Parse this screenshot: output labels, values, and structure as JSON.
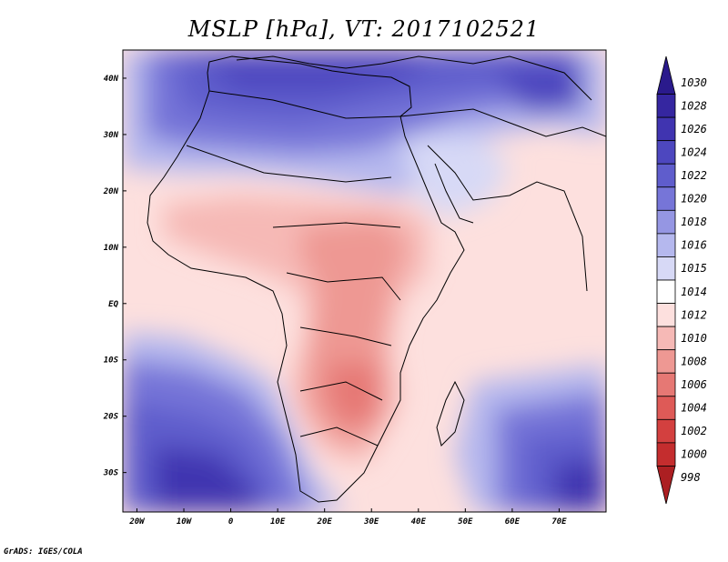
{
  "title": "MSLP [hPa], VT: 2017102521",
  "credit": "GrADS: IGES/COLA",
  "map": {
    "lon_range": [
      -23,
      80
    ],
    "lat_range": [
      -37,
      45
    ],
    "lon_ticks": [
      {
        "lon": -20,
        "label": "20W"
      },
      {
        "lon": -10,
        "label": "10W"
      },
      {
        "lon": 0,
        "label": "0"
      },
      {
        "lon": 10,
        "label": "10E"
      },
      {
        "lon": 20,
        "label": "20E"
      },
      {
        "lon": 30,
        "label": "30E"
      },
      {
        "lon": 40,
        "label": "40E"
      },
      {
        "lon": 50,
        "label": "50E"
      },
      {
        "lon": 60,
        "label": "60E"
      },
      {
        "lon": 70,
        "label": "70E"
      }
    ],
    "lat_ticks": [
      {
        "lat": 40,
        "label": "40N"
      },
      {
        "lat": 30,
        "label": "30N"
      },
      {
        "lat": 20,
        "label": "20N"
      },
      {
        "lat": 10,
        "label": "10N"
      },
      {
        "lat": 0,
        "label": "EQ"
      },
      {
        "lat": -10,
        "label": "10S"
      },
      {
        "lat": -20,
        "label": "20S"
      },
      {
        "lat": -30,
        "label": "30S"
      }
    ]
  },
  "colorbar": {
    "levels": [
      {
        "label": "1030",
        "color": "#2a1a8c"
      },
      {
        "label": "1028",
        "color": "#3526a0"
      },
      {
        "label": "1026",
        "color": "#4034b0"
      },
      {
        "label": "1024",
        "color": "#4d47bf"
      },
      {
        "label": "1022",
        "color": "#5f5dcc"
      },
      {
        "label": "1020",
        "color": "#7675d8"
      },
      {
        "label": "1018",
        "color": "#9596e3"
      },
      {
        "label": "1016",
        "color": "#b5b8ee"
      },
      {
        "label": "1015",
        "color": "#d7d9f6"
      },
      {
        "label": "1014",
        "color": "#ffffff"
      },
      {
        "label": "1012",
        "color": "#fde0de"
      },
      {
        "label": "1010",
        "color": "#f6b9b6"
      },
      {
        "label": "1008",
        "color": "#ee9893"
      },
      {
        "label": "1006",
        "color": "#e67874"
      },
      {
        "label": "1004",
        "color": "#de5a57"
      },
      {
        "label": "1002",
        "color": "#d3403f"
      },
      {
        "label": "1000",
        "color": "#c42d2e"
      },
      {
        "label": "998",
        "color": "#ac1f22"
      }
    ]
  }
}
